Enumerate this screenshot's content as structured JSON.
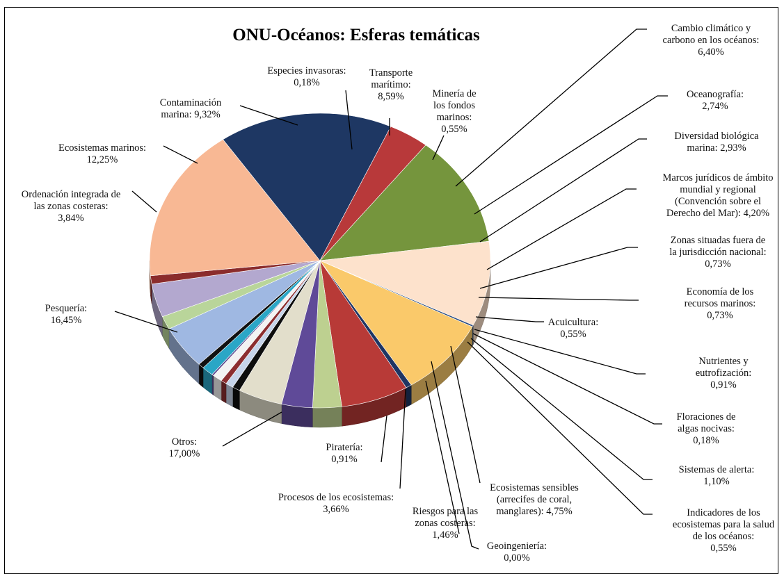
{
  "chart_data": {
    "type": "pie",
    "title": "ONU-Océanos: Esferas temáticas",
    "series": [
      {
        "key": "cambio",
        "label_lines": [
          "Cambio climático y",
          "carbono en los océanos:",
          "6,40%"
        ],
        "value": 6.4,
        "color": "#b83a37"
      },
      {
        "key": "oceanografia",
        "label_lines": [
          "Oceanografía:",
          "2,74%"
        ],
        "value": 2.74,
        "color": "#bdd090"
      },
      {
        "key": "diversidad",
        "label_lines": [
          "Diversidad biológica",
          "marina: 2,93%"
        ],
        "value": 2.93,
        "color": "#5f4a98"
      },
      {
        "key": "marcos",
        "label_lines": [
          "Marcos jurídicos de ámbito",
          "mundial y regional",
          "(Convención sobre el",
          "Derecho del Mar): 4,20%"
        ],
        "value": 4.2,
        "color": "#e2decb"
      },
      {
        "key": "zonas_fuera",
        "label_lines": [
          "Zonas situadas fuera de",
          "la jurisdicción nacional:",
          "0,73%"
        ],
        "value": 0.73,
        "color": "#0d0d0d"
      },
      {
        "key": "economia",
        "label_lines": [
          "Economía de los",
          "recursos marinos:",
          "0,73%"
        ],
        "value": 0.73,
        "color": "#c6d4ea"
      },
      {
        "key": "acuicultura",
        "label_lines": [
          "Acuicultura:",
          "0,55%"
        ],
        "value": 0.55,
        "color": "#8c2e30"
      },
      {
        "key": "nutrientes",
        "label_lines": [
          "Nutrientes y",
          "eutrofización:",
          "0,91%"
        ],
        "value": 0.91,
        "color": "#f3f3f3"
      },
      {
        "key": "floraciones",
        "label_lines": [
          "Floraciones de",
          "algas nocivas:",
          "0,18%"
        ],
        "value": 0.18,
        "color": "#5e4a8f"
      },
      {
        "key": "alerta",
        "label_lines": [
          "Sistemas de alerta:",
          "1,10%"
        ],
        "value": 1.1,
        "color": "#2aa6c6"
      },
      {
        "key": "indicadores",
        "label_lines": [
          "Indicadores de los",
          "ecosistemas para la salud",
          "de los océanos:",
          "0,55%"
        ],
        "value": 0.55,
        "color": "#111111"
      },
      {
        "key": "sensibles",
        "label_lines": [
          "Ecosistemas sensibles",
          "(arrecifes de coral,",
          "manglares): 4,75%"
        ],
        "value": 4.75,
        "color": "#9fb8e2"
      },
      {
        "key": "geoingenieria",
        "label_lines": [
          "Geoingeniería:",
          "0,00%"
        ],
        "value": 0.0,
        "color": "#cccccc"
      },
      {
        "key": "riesgos",
        "label_lines": [
          "Riesgos para las",
          "zonas costeras:",
          "1,46%"
        ],
        "value": 1.46,
        "color": "#b9d59a"
      },
      {
        "key": "procesos",
        "label_lines": [
          "Procesos de los ecosistemas:",
          "3,66%"
        ],
        "value": 3.66,
        "color": "#b3a8cf"
      },
      {
        "key": "pirateria",
        "label_lines": [
          "Piratería:",
          "0,91%"
        ],
        "value": 0.91,
        "color": "#8b2c2c"
      },
      {
        "key": "otros",
        "label_lines": [
          "Otros:",
          "17,00%"
        ],
        "value": 17.0,
        "color": "#f8b894"
      },
      {
        "key": "pesqueria",
        "label_lines": [
          "Pesquería:",
          "16,45%"
        ],
        "value": 16.45,
        "color": "#1e3763"
      },
      {
        "key": "ordenacion",
        "label_lines": [
          "Ordenación integrada de",
          "las zonas costeras:",
          "3,84%"
        ],
        "value": 3.84,
        "color": "#b8393a"
      },
      {
        "key": "ecosistemas",
        "label_lines": [
          "Ecosistemas marinos:",
          "12,25%"
        ],
        "value": 12.25,
        "color": "#75953d"
      },
      {
        "key": "contaminacion",
        "label_lines": [
          "Contaminación",
          "marina: 9,32%"
        ],
        "value": 9.32,
        "color": "#fde2cc"
      },
      {
        "key": "invasoras",
        "label_lines": [
          "Especies invasoras:",
          "0,18%"
        ],
        "value": 0.18,
        "color": "#2f4f82"
      },
      {
        "key": "transporte",
        "label_lines": [
          "Transporte",
          "marítimo:",
          "8,59%"
        ],
        "value": 8.59,
        "color": "#fac96a"
      },
      {
        "key": "mineria",
        "label_lines": [
          "Minería de",
          "los fondos",
          "marinos:",
          "0,55%"
        ],
        "value": 0.55,
        "color": "#1f3563"
      }
    ]
  }
}
